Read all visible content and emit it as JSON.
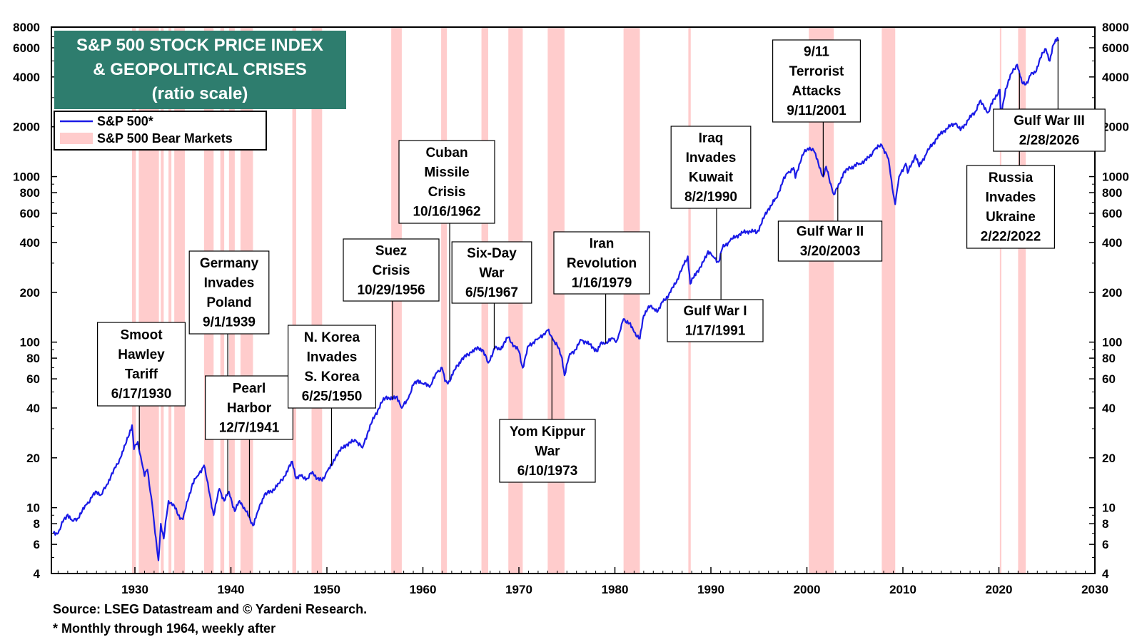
{
  "chart_data": {
    "type": "line",
    "title": "S&P 500 STOCK PRICE INDEX",
    "subtitle": "& GEOPOLITICAL CRISES",
    "scale_note": "(ratio scale)",
    "x_range": [
      1921.3,
      2030
    ],
    "x_ticks": [
      1930,
      1940,
      1950,
      1960,
      1970,
      1980,
      1990,
      2000,
      2010,
      2020,
      2030
    ],
    "y_range": [
      4,
      8000
    ],
    "y_scale": "log",
    "y_ticks": [
      4,
      6,
      8,
      10,
      20,
      40,
      60,
      80,
      100,
      200,
      400,
      600,
      800,
      1000,
      2000,
      4000,
      6000,
      8000
    ],
    "legend": [
      "S&P 500*",
      "S&P 500 Bear Markets"
    ],
    "legend_position": "top-left",
    "series": [
      {
        "name": "S&P 500*",
        "color": "#1a1ae6",
        "points": [
          [
            1921.5,
            7.0
          ],
          [
            1922.0,
            7.0
          ],
          [
            1922.5,
            8.2
          ],
          [
            1923.0,
            9.1
          ],
          [
            1923.5,
            8.3
          ],
          [
            1924.0,
            8.6
          ],
          [
            1924.5,
            9.5
          ],
          [
            1925.0,
            10.5
          ],
          [
            1925.5,
            11.5
          ],
          [
            1926.0,
            12.5
          ],
          [
            1926.5,
            12.0
          ],
          [
            1927.0,
            13.5
          ],
          [
            1927.5,
            15.5
          ],
          [
            1928.0,
            17.5
          ],
          [
            1928.5,
            20.0
          ],
          [
            1929.0,
            24.0
          ],
          [
            1929.7,
            31.5
          ],
          [
            1929.9,
            22.5
          ],
          [
            1930.3,
            25.0
          ],
          [
            1930.7,
            19.0
          ],
          [
            1931.0,
            15.5
          ],
          [
            1931.3,
            17.0
          ],
          [
            1931.8,
            10.5
          ],
          [
            1932.1,
            7.0
          ],
          [
            1932.45,
            4.8
          ],
          [
            1932.7,
            8.0
          ],
          [
            1933.0,
            6.5
          ],
          [
            1933.5,
            11.0
          ],
          [
            1934.0,
            10.5
          ],
          [
            1934.5,
            9.0
          ],
          [
            1935.0,
            8.5
          ],
          [
            1935.5,
            11.0
          ],
          [
            1936.0,
            14.0
          ],
          [
            1936.5,
            15.5
          ],
          [
            1937.2,
            18.0
          ],
          [
            1937.8,
            12.0
          ],
          [
            1938.2,
            9.0
          ],
          [
            1938.8,
            13.0
          ],
          [
            1939.3,
            11.0
          ],
          [
            1939.8,
            12.5
          ],
          [
            1940.4,
            9.5
          ],
          [
            1940.9,
            11.0
          ],
          [
            1941.4,
            10.0
          ],
          [
            1942.0,
            8.5
          ],
          [
            1942.3,
            7.8
          ],
          [
            1942.8,
            9.5
          ],
          [
            1943.5,
            12.0
          ],
          [
            1944.2,
            12.5
          ],
          [
            1945.0,
            14.0
          ],
          [
            1945.6,
            15.5
          ],
          [
            1946.4,
            19.0
          ],
          [
            1946.8,
            15.0
          ],
          [
            1947.3,
            15.5
          ],
          [
            1948.0,
            15.0
          ],
          [
            1948.5,
            16.5
          ],
          [
            1949.0,
            15.0
          ],
          [
            1949.5,
            14.5
          ],
          [
            1950.0,
            16.5
          ],
          [
            1950.5,
            18.0
          ],
          [
            1951.0,
            21.0
          ],
          [
            1952.0,
            24.0
          ],
          [
            1953.0,
            25.5
          ],
          [
            1953.7,
            23.0
          ],
          [
            1954.3,
            29.0
          ],
          [
            1955.0,
            36.0
          ],
          [
            1955.7,
            43.0
          ],
          [
            1956.2,
            47.0
          ],
          [
            1956.8,
            45.0
          ],
          [
            1957.3,
            47.0
          ],
          [
            1957.8,
            40.0
          ],
          [
            1958.5,
            46.0
          ],
          [
            1959.0,
            55.0
          ],
          [
            1959.5,
            59.0
          ],
          [
            1960.0,
            56.0
          ],
          [
            1960.8,
            55.0
          ],
          [
            1961.5,
            66.0
          ],
          [
            1962.0,
            70.0
          ],
          [
            1962.3,
            58.0
          ],
          [
            1962.6,
            56.0
          ],
          [
            1963.3,
            68.0
          ],
          [
            1964.0,
            78.0
          ],
          [
            1965.0,
            87.0
          ],
          [
            1965.8,
            92.0
          ],
          [
            1966.2,
            90.0
          ],
          [
            1966.8,
            75.0
          ],
          [
            1967.5,
            92.0
          ],
          [
            1968.0,
            90.0
          ],
          [
            1968.9,
            107.0
          ],
          [
            1969.5,
            95.0
          ],
          [
            1970.0,
            88.0
          ],
          [
            1970.4,
            70.0
          ],
          [
            1971.0,
            95.0
          ],
          [
            1971.5,
            100.0
          ],
          [
            1972.0,
            105.0
          ],
          [
            1972.8,
            115.0
          ],
          [
            1973.0,
            118.0
          ],
          [
            1973.5,
            105.0
          ],
          [
            1974.0,
            95.0
          ],
          [
            1974.5,
            80.0
          ],
          [
            1974.75,
            63.0
          ],
          [
            1975.3,
            85.0
          ],
          [
            1975.9,
            90.0
          ],
          [
            1976.5,
            103.0
          ],
          [
            1977.0,
            100.0
          ],
          [
            1977.8,
            92.0
          ],
          [
            1978.2,
            88.0
          ],
          [
            1978.6,
            100.0
          ],
          [
            1979.0,
            98.0
          ],
          [
            1979.8,
            105.0
          ],
          [
            1980.2,
            102.0
          ],
          [
            1980.5,
            115.0
          ],
          [
            1980.9,
            138.0
          ],
          [
            1981.5,
            130.0
          ],
          [
            1982.0,
            115.0
          ],
          [
            1982.6,
            105.0
          ],
          [
            1983.0,
            145.0
          ],
          [
            1983.5,
            165.0
          ],
          [
            1984.0,
            160.0
          ],
          [
            1984.5,
            155.0
          ],
          [
            1985.0,
            175.0
          ],
          [
            1985.8,
            200.0
          ],
          [
            1986.5,
            240.0
          ],
          [
            1987.0,
            280.0
          ],
          [
            1987.6,
            330.0
          ],
          [
            1987.85,
            225.0
          ],
          [
            1988.5,
            265.0
          ],
          [
            1989.0,
            285.0
          ],
          [
            1989.7,
            355.0
          ],
          [
            1990.2,
            330.0
          ],
          [
            1990.8,
            305.0
          ],
          [
            1991.2,
            370.0
          ],
          [
            1992.0,
            410.0
          ],
          [
            1993.0,
            450.0
          ],
          [
            1994.0,
            470.0
          ],
          [
            1994.8,
            460.0
          ],
          [
            1995.5,
            560.0
          ],
          [
            1996.0,
            640.0
          ],
          [
            1996.8,
            740.0
          ],
          [
            1997.5,
            940.0
          ],
          [
            1998.0,
            1050.0
          ],
          [
            1998.6,
            1130.0
          ],
          [
            1998.8,
            980.0
          ],
          [
            1999.5,
            1350.0
          ],
          [
            2000.0,
            1450.0
          ],
          [
            2000.3,
            1500.0
          ],
          [
            2000.7,
            1440.0
          ],
          [
            2001.2,
            1200.0
          ],
          [
            2001.7,
            1000.0
          ],
          [
            2002.0,
            1150.0
          ],
          [
            2002.6,
            850.0
          ],
          [
            2002.8,
            780.0
          ],
          [
            2003.2,
            850.0
          ],
          [
            2003.8,
            1050.0
          ],
          [
            2004.5,
            1130.0
          ],
          [
            2005.5,
            1200.0
          ],
          [
            2006.5,
            1300.0
          ],
          [
            2007.0,
            1450.0
          ],
          [
            2007.8,
            1550.0
          ],
          [
            2008.5,
            1280.0
          ],
          [
            2008.9,
            850.0
          ],
          [
            2009.2,
            680.0
          ],
          [
            2009.6,
            1000.0
          ],
          [
            2010.3,
            1200.0
          ],
          [
            2010.5,
            1050.0
          ],
          [
            2011.3,
            1350.0
          ],
          [
            2011.7,
            1150.0
          ],
          [
            2012.5,
            1400.0
          ],
          [
            2013.5,
            1700.0
          ],
          [
            2014.5,
            1950.0
          ],
          [
            2015.5,
            2100.0
          ],
          [
            2016.0,
            1900.0
          ],
          [
            2016.8,
            2200.0
          ],
          [
            2017.5,
            2450.0
          ],
          [
            2018.0,
            2850.0
          ],
          [
            2018.9,
            2450.0
          ],
          [
            2019.5,
            2950.0
          ],
          [
            2020.1,
            3350.0
          ],
          [
            2020.2,
            2250.0
          ],
          [
            2020.7,
            3400.0
          ],
          [
            2021.3,
            4200.0
          ],
          [
            2021.9,
            4750.0
          ],
          [
            2022.4,
            3700.0
          ],
          [
            2022.8,
            3600.0
          ],
          [
            2023.3,
            4100.0
          ],
          [
            2023.8,
            4250.0
          ],
          [
            2024.3,
            5200.0
          ],
          [
            2024.9,
            5900.0
          ],
          [
            2025.3,
            5000.0
          ],
          [
            2025.7,
            6300.0
          ],
          [
            2026.1,
            6900.0
          ],
          [
            2026.2,
            6600.0
          ]
        ]
      }
    ],
    "bear_markets": [
      [
        1929.7,
        1930.1
      ],
      [
        1930.4,
        1932.5
      ],
      [
        1932.7,
        1933.0
      ],
      [
        1933.5,
        1933.8
      ],
      [
        1934.1,
        1935.2
      ],
      [
        1937.2,
        1938.2
      ],
      [
        1938.9,
        1939.3
      ],
      [
        1939.8,
        1940.4
      ],
      [
        1941.0,
        1942.3
      ],
      [
        1946.4,
        1946.8
      ],
      [
        1948.4,
        1949.5
      ],
      [
        1956.7,
        1957.8
      ],
      [
        1961.9,
        1962.5
      ],
      [
        1966.1,
        1966.8
      ],
      [
        1968.9,
        1970.4
      ],
      [
        1973.0,
        1974.75
      ],
      [
        1980.9,
        1982.6
      ],
      [
        1987.65,
        1987.9
      ],
      [
        2000.2,
        2002.8
      ],
      [
        2007.8,
        2009.2
      ],
      [
        2020.1,
        2020.25
      ],
      [
        2022.0,
        2022.8
      ]
    ],
    "annotations": [
      {
        "lines": [
          "Smoot",
          "Hawley",
          "Tariff",
          "6/17/1930"
        ],
        "date": 1930.46
      },
      {
        "lines": [
          "Germany",
          "Invades",
          "Poland",
          "9/1/1939"
        ],
        "date": 1939.67
      },
      {
        "lines": [
          "Pearl",
          "Harbor",
          "12/7/1941"
        ],
        "date": 1941.93
      },
      {
        "lines": [
          "N. Korea",
          "Invades",
          "S. Korea",
          "6/25/1950"
        ],
        "date": 1950.48
      },
      {
        "lines": [
          "Suez",
          "Crisis",
          "10/29/1956"
        ],
        "date": 1956.83
      },
      {
        "lines": [
          "Cuban",
          "Missile",
          "Crisis",
          "10/16/1962"
        ],
        "date": 1962.79
      },
      {
        "lines": [
          "Six-Day",
          "War",
          "6/5/1967"
        ],
        "date": 1967.43
      },
      {
        "lines": [
          "Yom Kippur",
          "War",
          "6/10/1973"
        ],
        "date": 1973.44
      },
      {
        "lines": [
          "Iran",
          "Revolution",
          "1/16/1979"
        ],
        "date": 1979.04
      },
      {
        "lines": [
          "Iraq",
          "Invades",
          "Kuwait",
          "8/2/1990"
        ],
        "date": 1990.59
      },
      {
        "lines": [
          "Gulf War I",
          "1/17/1991"
        ],
        "date": 1991.05
      },
      {
        "lines": [
          "9/11",
          "Terrorist",
          "Attacks",
          "9/11/2001"
        ],
        "date": 2001.7
      },
      {
        "lines": [
          "Gulf War II",
          "3/20/2003"
        ],
        "date": 2003.22
      },
      {
        "lines": [
          "Russia",
          "Invades",
          "Ukraine",
          "2/22/2022"
        ],
        "date": 2022.14
      },
      {
        "lines": [
          "Gulf War III",
          "2/28/2026"
        ],
        "date": 2026.16
      }
    ]
  },
  "footnotes": {
    "source": "Source: LSEG Datastream and © Yardeni Research.",
    "note": "* Monthly through 1964, weekly after"
  },
  "colors": {
    "line": "#1a1ae6",
    "bear": "#ffcccc",
    "title_bg": "#2e7d6e",
    "title_text": "#ffffff"
  }
}
